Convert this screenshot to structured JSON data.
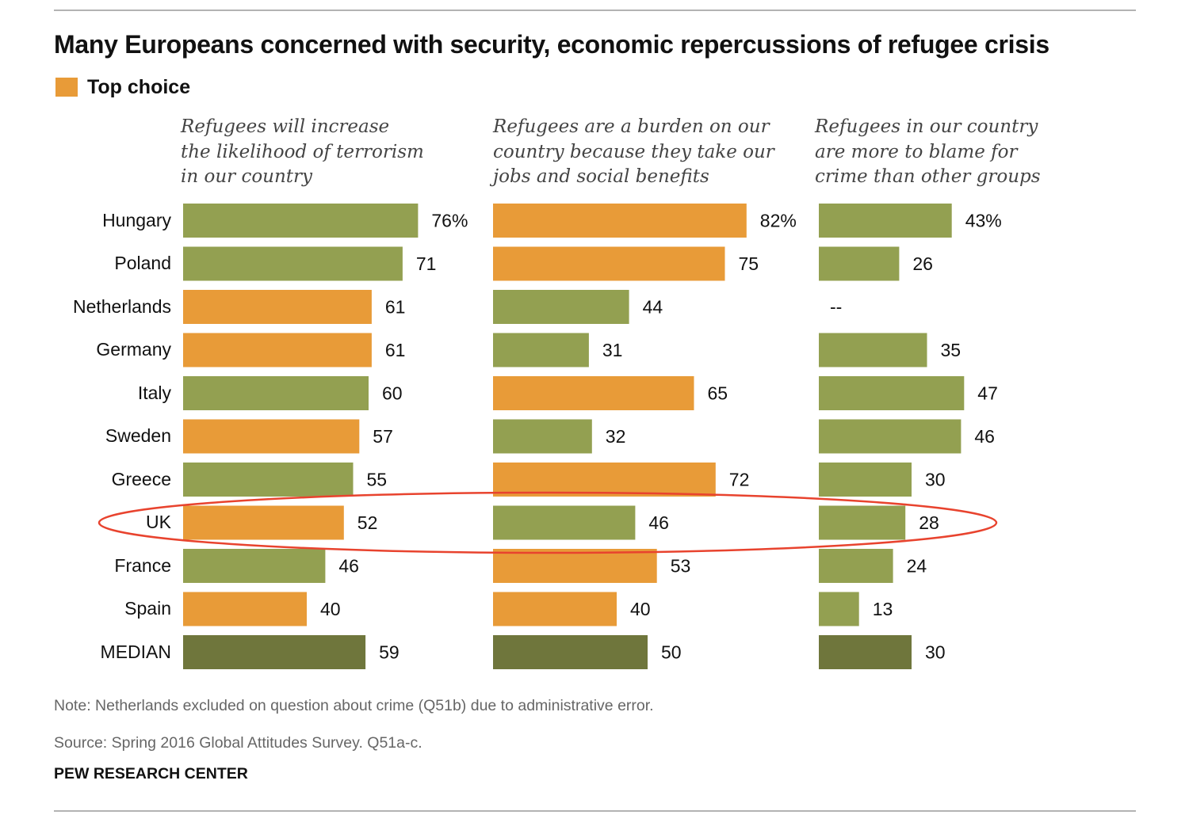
{
  "header": {
    "title": "Many Europeans concerned with security, economic repercussions of refugee crisis"
  },
  "legend": {
    "label": "Top choice",
    "color": "#e89b38"
  },
  "colors": {
    "top_choice": "#e89b38",
    "other": "#93a051",
    "median": "#6f763c",
    "highlight_ellipse": "#e8432e"
  },
  "chart_data": {
    "type": "bar",
    "orientation": "horizontal",
    "categories": [
      "Hungary",
      "Poland",
      "Netherlands",
      "Germany",
      "Italy",
      "Sweden",
      "Greece",
      "UK",
      "France",
      "Spain",
      "MEDIAN"
    ],
    "highlighted_category": "UK",
    "series": [
      {
        "name": "Refugees will increase the likelihood of terrorism in our country",
        "header_lines": [
          "Refugees will increase",
          "the likelihood of terrorism",
          "in our country"
        ],
        "values": [
          76,
          71,
          61,
          61,
          60,
          57,
          55,
          52,
          46,
          40,
          59
        ],
        "labels": [
          "76%",
          "71",
          "61",
          "61",
          "60",
          "57",
          "55",
          "52",
          "46",
          "40",
          "59"
        ],
        "top_choice": [
          false,
          false,
          true,
          true,
          false,
          true,
          false,
          true,
          false,
          true,
          false
        ]
      },
      {
        "name": "Refugees are a burden on our country because they take our jobs and social benefits",
        "header_lines": [
          "Refugees are a burden on our",
          "country because they take our",
          "jobs and social benefits"
        ],
        "values": [
          82,
          75,
          44,
          31,
          65,
          32,
          72,
          46,
          53,
          40,
          50
        ],
        "labels": [
          "82%",
          "75",
          "44",
          "31",
          "65",
          "32",
          "72",
          "46",
          "53",
          "40",
          "50"
        ],
        "top_choice": [
          true,
          true,
          false,
          false,
          true,
          false,
          true,
          false,
          true,
          true,
          false
        ]
      },
      {
        "name": "Refugees in our country are more to blame for crime than other groups",
        "header_lines": [
          "Refugees in our country",
          "are more to blame for",
          "crime than other groups"
        ],
        "values": [
          43,
          26,
          null,
          35,
          47,
          46,
          30,
          28,
          24,
          13,
          30
        ],
        "labels": [
          "43%",
          "26",
          "--",
          "35",
          "47",
          "46",
          "30",
          "28",
          "24",
          "13",
          "30"
        ],
        "top_choice": [
          false,
          false,
          false,
          false,
          false,
          false,
          false,
          false,
          false,
          false,
          false
        ]
      }
    ]
  },
  "notes": {
    "note": "Note: Netherlands excluded on question about crime (Q51b) due to administrative error.",
    "source": "Source: Spring 2016 Global Attitudes Survey. Q51a-c.",
    "brand": "PEW RESEARCH CENTER"
  }
}
